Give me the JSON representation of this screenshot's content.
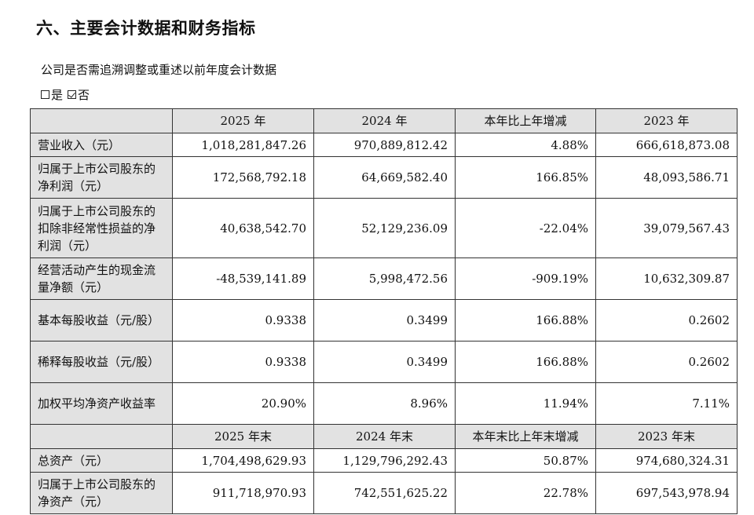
{
  "heading": "六、主要会计数据和财务指标",
  "subtitle": "公司是否需追溯调整或重述以前年度会计数据",
  "options": [
    {
      "label": "是",
      "checked": false
    },
    {
      "label": "否",
      "checked": true
    }
  ],
  "table": {
    "headers": [
      "",
      "2025 年",
      "2024 年",
      "本年比上年增减",
      "2023 年"
    ],
    "rows": [
      {
        "label": "营业收入（元）",
        "values": [
          "1,018,281,847.26",
          "970,889,812.42",
          "4.88%",
          "666,618,873.08"
        ]
      },
      {
        "label": "归属于上市公司股东的净利润（元）",
        "values": [
          "172,568,792.18",
          "64,669,582.40",
          "166.85%",
          "48,093,586.71"
        ]
      },
      {
        "label": "归属于上市公司股东的扣除非经常性损益的净利润（元）",
        "values": [
          "40,638,542.70",
          "52,129,236.09",
          "-22.04%",
          "39,079,567.43"
        ]
      },
      {
        "label": "经营活动产生的现金流量净额（元）",
        "values": [
          "-48,539,141.89",
          "5,998,472.56",
          "-909.19%",
          "10,632,309.87"
        ]
      },
      {
        "label": "基本每股收益（元/股）",
        "values": [
          "0.9338",
          "0.3499",
          "166.88%",
          "0.2602"
        ]
      },
      {
        "label": "稀释每股收益（元/股）",
        "values": [
          "0.9338",
          "0.3499",
          "166.88%",
          "0.2602"
        ]
      },
      {
        "label": "加权平均净资产收益率",
        "values": [
          "20.90%",
          "8.96%",
          "11.94%",
          "7.11%"
        ]
      }
    ],
    "headers2": [
      "",
      "2025 年末",
      "2024 年末",
      "本年末比上年末增减",
      "2023 年末"
    ],
    "rows2": [
      {
        "label": "总资产（元）",
        "values": [
          "1,704,498,629.93",
          "1,129,796,292.43",
          "50.87%",
          "974,680,324.31"
        ]
      },
      {
        "label": "归属于上市公司股东的净资产（元）",
        "values": [
          "911,718,970.93",
          "742,551,625.22",
          "22.78%",
          "697,543,978.94"
        ]
      }
    ]
  }
}
